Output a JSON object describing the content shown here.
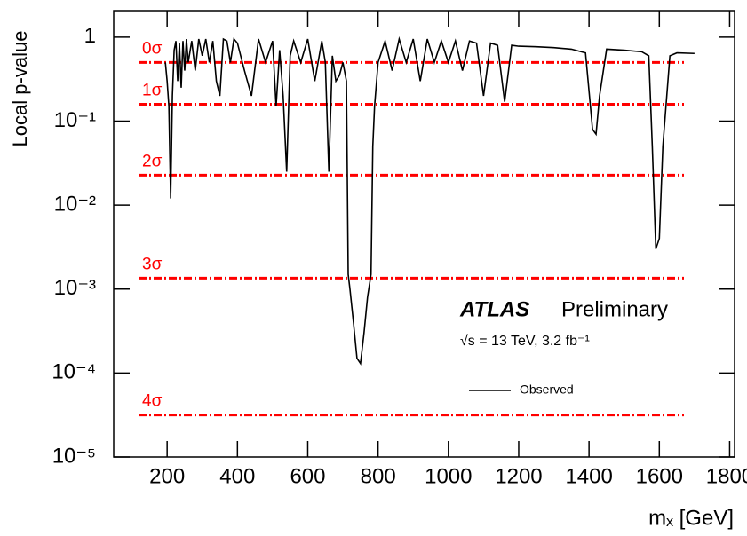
{
  "chart_data": {
    "type": "line",
    "x_label": "mₓ [GeV]",
    "y_label": "Local p-value",
    "log_y": true,
    "xlim": [
      48,
      1814
    ],
    "ylim": [
      1e-05,
      2.07
    ],
    "xticks": [
      200,
      400,
      600,
      800,
      1000,
      1200,
      1400,
      1600,
      1800
    ],
    "yticks": [
      {
        "value": 1e-05,
        "label": "10⁻⁵"
      },
      {
        "value": 0.0001,
        "label": "10⁻⁴"
      },
      {
        "value": 0.001,
        "label": "10⁻³"
      },
      {
        "value": 0.01,
        "label": "10⁻²"
      },
      {
        "value": 0.1,
        "label": "10⁻¹"
      },
      1
    ],
    "x": [
      195,
      200,
      205,
      210,
      215,
      220,
      225,
      230,
      235,
      240,
      245,
      250,
      255,
      260,
      270,
      280,
      290,
      300,
      310,
      320,
      330,
      340,
      350,
      360,
      370,
      380,
      390,
      400,
      420,
      440,
      460,
      480,
      500,
      510,
      520,
      530,
      540,
      550,
      560,
      580,
      600,
      620,
      640,
      650,
      660,
      670,
      680,
      690,
      700,
      710,
      715,
      720,
      730,
      740,
      750,
      760,
      770,
      780,
      785,
      790,
      800,
      820,
      840,
      860,
      880,
      900,
      920,
      940,
      960,
      980,
      1000,
      1020,
      1040,
      1060,
      1080,
      1100,
      1120,
      1140,
      1160,
      1180,
      1200,
      1250,
      1300,
      1350,
      1390,
      1410,
      1420,
      1430,
      1450,
      1500,
      1550,
      1570,
      1580,
      1590,
      1600,
      1610,
      1630,
      1650,
      1700
    ],
    "series": [
      {
        "name": "Observed",
        "color": "#000000",
        "values": [
          0.5,
          0.3,
          0.15,
          0.012,
          0.2,
          0.7,
          0.9,
          0.3,
          0.85,
          0.25,
          0.9,
          0.4,
          0.95,
          0.5,
          0.9,
          0.4,
          0.95,
          0.6,
          0.95,
          0.5,
          0.9,
          0.3,
          0.2,
          0.95,
          0.9,
          0.5,
          0.95,
          0.85,
          0.4,
          0.2,
          0.95,
          0.5,
          0.9,
          0.15,
          0.7,
          0.2,
          0.025,
          0.6,
          0.9,
          0.5,
          0.95,
          0.3,
          0.9,
          0.5,
          0.025,
          0.6,
          0.3,
          0.35,
          0.5,
          0.3,
          0.0015,
          0.001,
          0.0004,
          0.00015,
          0.00013,
          0.0003,
          0.0008,
          0.0015,
          0.05,
          0.15,
          0.5,
          0.9,
          0.4,
          0.95,
          0.5,
          0.95,
          0.3,
          0.95,
          0.5,
          0.9,
          0.5,
          0.9,
          0.4,
          0.9,
          0.85,
          0.2,
          0.85,
          0.8,
          0.17,
          0.8,
          0.78,
          0.77,
          0.75,
          0.72,
          0.65,
          0.08,
          0.07,
          0.2,
          0.72,
          0.7,
          0.67,
          0.6,
          0.05,
          0.003,
          0.004,
          0.05,
          0.6,
          0.65,
          0.64
        ]
      }
    ],
    "sigma_color": "#ff0000",
    "sigma_lines": [
      {
        "label": "0σ",
        "value": 0.5
      },
      {
        "label": "1σ",
        "value": 0.1587
      },
      {
        "label": "2σ",
        "value": 0.02275
      },
      {
        "label": "3σ",
        "value": 0.00135
      },
      {
        "label": "4σ",
        "value": 3.17e-05
      }
    ],
    "annotations": {
      "experiment": "ATLAS",
      "status": "Preliminary",
      "energy": "√s = 13 TeV, 3.2 fb⁻¹"
    }
  }
}
